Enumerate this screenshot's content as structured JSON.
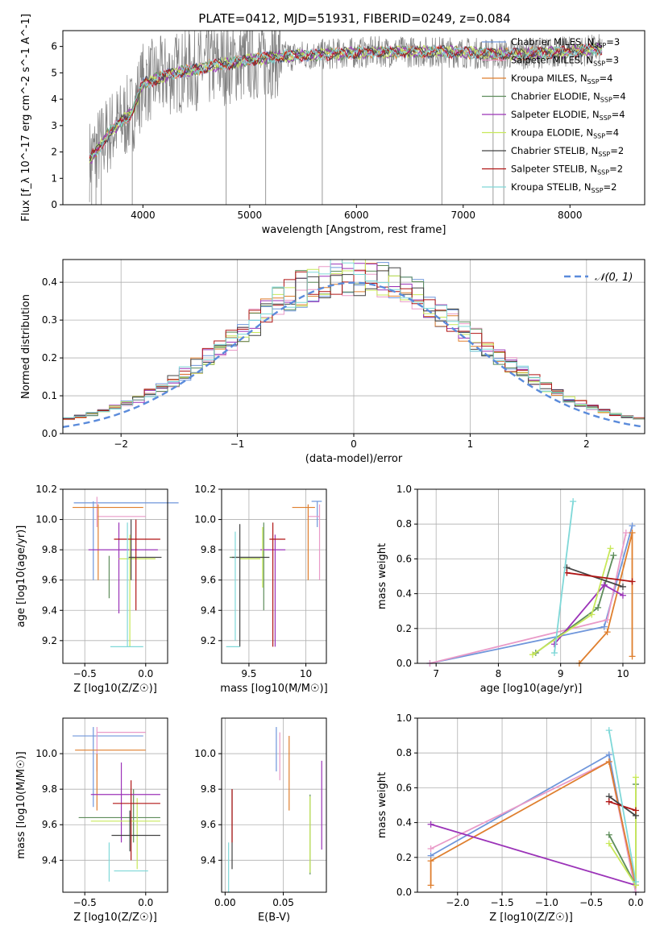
{
  "figure": {
    "title": "PLATE=0412, MJD=51931, FIBERID=0249, z=0.084"
  },
  "models": [
    {
      "name": "Chabrier MILES",
      "nssp": 3,
      "color": "#6f96db"
    },
    {
      "name": "Salpeter MILES",
      "nssp": 3,
      "color": "#e99ac8"
    },
    {
      "name": "Kroupa MILES",
      "nssp": 4,
      "color": "#df7f2e"
    },
    {
      "name": "Chabrier ELODIE",
      "nssp": 4,
      "color": "#5e8d5b"
    },
    {
      "name": "Salpeter ELODIE",
      "nssp": 4,
      "color": "#9b33b8"
    },
    {
      "name": "Kroupa ELODIE",
      "nssp": 4,
      "color": "#c8e85a"
    },
    {
      "name": "Chabrier STELIB",
      "nssp": 2,
      "color": "#444444"
    },
    {
      "name": "Salpeter STELIB",
      "nssp": 2,
      "color": "#b01515"
    },
    {
      "name": "Kroupa STELIB",
      "nssp": 2,
      "color": "#7fd8d8"
    }
  ],
  "chart_data": [
    {
      "id": "spectrum",
      "type": "line",
      "xlabel": "wavelength [Angstrom, rest frame]",
      "ylabel": "Flux [f_λ 10^-17 erg cm^-2 s^-1 A^-1]",
      "xlim": [
        3250,
        8700
      ],
      "ylim": [
        0,
        6.6
      ],
      "xticks": [
        4000,
        5000,
        6000,
        7000,
        8000
      ],
      "yticks": [
        0,
        1,
        2,
        3,
        4,
        5,
        6
      ],
      "continuum": {
        "x": [
          3500,
          3700,
          3900,
          4000,
          4300,
          4700,
          5200,
          5700,
          6200,
          6800,
          7400,
          8000,
          8300
        ],
        "y": [
          1.7,
          2.8,
          3.5,
          4.6,
          5.0,
          5.3,
          5.6,
          5.7,
          5.8,
          5.8,
          5.7,
          5.8,
          5.9
        ]
      },
      "grid": false,
      "legend": "upper right"
    },
    {
      "id": "residuals",
      "type": "step",
      "xlabel": "(data-model)/error",
      "ylabel": "Normed distribution",
      "xlim": [
        -2.5,
        2.5
      ],
      "ylim": [
        0,
        0.46
      ],
      "xticks": [
        -2,
        -1,
        0,
        1,
        2
      ],
      "yticks": [
        0.0,
        0.1,
        0.2,
        0.3,
        0.4
      ],
      "reference": {
        "label": "𝒩(0, 1)",
        "mean": 0,
        "sigma": 1,
        "color": "#5b8bdb"
      },
      "grid": true,
      "legend": "upper right"
    },
    {
      "id": "age-vs-Z",
      "type": "errorbar",
      "xlabel": "Z [log10(Z/Z☉)]",
      "ylabel": "age  [log10(age/yr)]",
      "xlim": [
        -0.68,
        0.18
      ],
      "ylim": [
        9.05,
        10.2
      ],
      "xticks": [
        -0.5,
        0.0
      ],
      "xticklabels": [
        "−0.5",
        "0.0"
      ],
      "yticks": [
        9.2,
        9.4,
        9.6,
        9.8,
        10.0,
        10.2
      ],
      "points": [
        {
          "x": -0.17,
          "y": 10.11,
          "xerr": [
            0.42,
            0.44
          ],
          "yerr": [
            0.0,
            0.0
          ]
        },
        {
          "x": -0.18,
          "y": 10.02,
          "xerr": [
            0.22,
            0.18
          ],
          "yerr": [
            0.0,
            0.0
          ]
        },
        {
          "x": -0.22,
          "y": 10.08,
          "xerr": [
            0.38,
            0.2
          ],
          "yerr": [
            0.0,
            0.0
          ]
        },
        {
          "x": -0.1,
          "y": 9.75,
          "xerr": [
            0.02,
            0.02
          ],
          "yerr": [
            0.0,
            0.0
          ]
        },
        {
          "x": -0.15,
          "y": 9.8,
          "xerr": [
            0.32,
            0.25
          ],
          "yerr": [
            0.0,
            0.0
          ]
        },
        {
          "x": -0.05,
          "y": 9.74,
          "xerr": [
            0.17,
            0.13
          ],
          "yerr": [
            0.0,
            0.0
          ]
        },
        {
          "x": -0.14,
          "y": 9.75,
          "xerr": [
            0.0,
            0.27
          ],
          "yerr": [
            0.0,
            0.0
          ]
        },
        {
          "x": -0.11,
          "y": 9.87,
          "xerr": [
            0.15,
            0.23
          ],
          "yerr": [
            0.0,
            0.0
          ]
        },
        {
          "x": -0.17,
          "y": 9.16,
          "xerr": [
            0.12,
            0.15
          ],
          "yerr": [
            0.0,
            0.0
          ]
        }
      ],
      "extra_x": [
        -0.43,
        -0.4,
        -0.39,
        -0.3,
        -0.22,
        -0.13,
        -0.12,
        -0.08,
        -0.15
      ],
      "extra_y": [
        [
          9.6,
          10.12
        ],
        [
          9.95,
          10.15
        ],
        [
          9.6,
          10.1
        ],
        [
          9.48,
          9.76
        ],
        [
          9.38,
          9.98
        ],
        [
          9.16,
          9.9
        ],
        [
          9.6,
          10.0
        ],
        [
          9.4,
          10.0
        ],
        [
          9.16,
          9.98
        ]
      ],
      "grid": true
    },
    {
      "id": "age-vs-mass",
      "type": "errorbar",
      "xlabel": "mass [log10(M/M☉)]",
      "ylabel": "",
      "xlim": [
        9.26,
        10.18
      ],
      "ylim": [
        9.05,
        10.2
      ],
      "xticks": [
        9.5,
        10.0
      ],
      "yticks": [
        9.2,
        9.4,
        9.6,
        9.8,
        10.0,
        10.2
      ],
      "grid": true
    },
    {
      "id": "weight-vs-age",
      "type": "line",
      "xlabel": "age  [log10(age/yr)]",
      "ylabel": "mass weight",
      "xlim": [
        6.7,
        10.35
      ],
      "ylim": [
        0,
        1.0
      ],
      "xticks": [
        7,
        8,
        9,
        10
      ],
      "yticks": [
        0.0,
        0.2,
        0.4,
        0.6,
        0.8,
        1.0
      ],
      "series": [
        {
          "x": [
            6.9,
            9.7,
            10.15
          ],
          "y": [
            0.0,
            0.21,
            0.79
          ]
        },
        {
          "x": [
            6.9,
            9.75,
            10.05
          ],
          "y": [
            0.0,
            0.25,
            0.75
          ]
        },
        {
          "x": [
            9.3,
            9.75,
            10.15,
            10.15
          ],
          "y": [
            0.0,
            0.18,
            0.75,
            0.04
          ]
        },
        {
          "x": [
            8.6,
            9.6,
            9.85
          ],
          "y": [
            0.06,
            0.32,
            0.62
          ]
        },
        {
          "x": [
            8.9,
            9.7,
            10.0
          ],
          "y": [
            0.11,
            0.45,
            0.39
          ]
        },
        {
          "x": [
            8.55,
            9.5,
            9.8
          ],
          "y": [
            0.05,
            0.28,
            0.66
          ]
        },
        {
          "x": [
            9.1,
            10.0
          ],
          "y": [
            0.55,
            0.44
          ]
        },
        {
          "x": [
            9.1,
            10.15
          ],
          "y": [
            0.52,
            0.47
          ]
        },
        {
          "x": [
            8.9,
            9.2
          ],
          "y": [
            0.06,
            0.93
          ]
        }
      ],
      "grid": true
    },
    {
      "id": "mass-vs-Z",
      "type": "errorbar",
      "xlabel": "Z [log10(Z/Z☉)]",
      "ylabel": "mass [log10(M/M☉)]",
      "xlim": [
        -0.68,
        0.18
      ],
      "ylim": [
        9.22,
        10.2
      ],
      "xticks": [
        -0.5,
        0.0
      ],
      "xticklabels": [
        "−0.5",
        "0.0"
      ],
      "yticks": [
        9.4,
        9.6,
        9.8,
        10.0
      ],
      "grid": true
    },
    {
      "id": "mass-vs-EBV",
      "type": "errorbar",
      "xlabel": "E(B-V)",
      "ylabel": "",
      "xlim": [
        -0.003,
        0.087
      ],
      "ylim": [
        9.22,
        10.2
      ],
      "xticks": [
        0.0,
        0.05
      ],
      "xticklabels": [
        "0.00",
        "0.05"
      ],
      "yticks": [
        9.4,
        9.6,
        9.8,
        10.0
      ],
      "grid": true
    },
    {
      "id": "weight-vs-Z",
      "type": "line",
      "xlabel": "Z [log10(Z/Z☉)]",
      "ylabel": "mass weight",
      "xlim": [
        -2.45,
        0.1
      ],
      "ylim": [
        0,
        1.0
      ],
      "xticks": [
        -2.0,
        -1.5,
        -1.0,
        -0.5,
        0.0
      ],
      "xticklabels": [
        "−2.0",
        "−1.5",
        "−1.0",
        "−0.5",
        "0.0"
      ],
      "yticks": [
        0.0,
        0.2,
        0.4,
        0.6,
        0.8,
        1.0
      ],
      "series": [
        {
          "x": [
            -2.3,
            -0.3,
            0.0
          ],
          "y": [
            0.21,
            0.79,
            0.0
          ]
        },
        {
          "x": [
            -2.3,
            -0.3,
            0.0
          ],
          "y": [
            0.25,
            0.75,
            0.0
          ]
        },
        {
          "x": [
            -2.3,
            -2.3,
            -0.3,
            0.0
          ],
          "y": [
            0.04,
            0.18,
            0.75,
            0.04
          ]
        },
        {
          "x": [
            -0.3,
            0.0,
            0.0
          ],
          "y": [
            0.33,
            0.04,
            0.62
          ]
        },
        {
          "x": [
            -2.3,
            0.0
          ],
          "y": [
            0.39,
            0.04
          ]
        },
        {
          "x": [
            -0.3,
            0.0,
            0.0
          ],
          "y": [
            0.28,
            0.04,
            0.66
          ]
        },
        {
          "x": [
            -0.3,
            0.0
          ],
          "y": [
            0.55,
            0.44
          ]
        },
        {
          "x": [
            -0.3,
            0.0
          ],
          "y": [
            0.52,
            0.47
          ]
        },
        {
          "x": [
            -0.3,
            0.0
          ],
          "y": [
            0.93,
            0.06
          ]
        }
      ],
      "grid": true
    }
  ]
}
